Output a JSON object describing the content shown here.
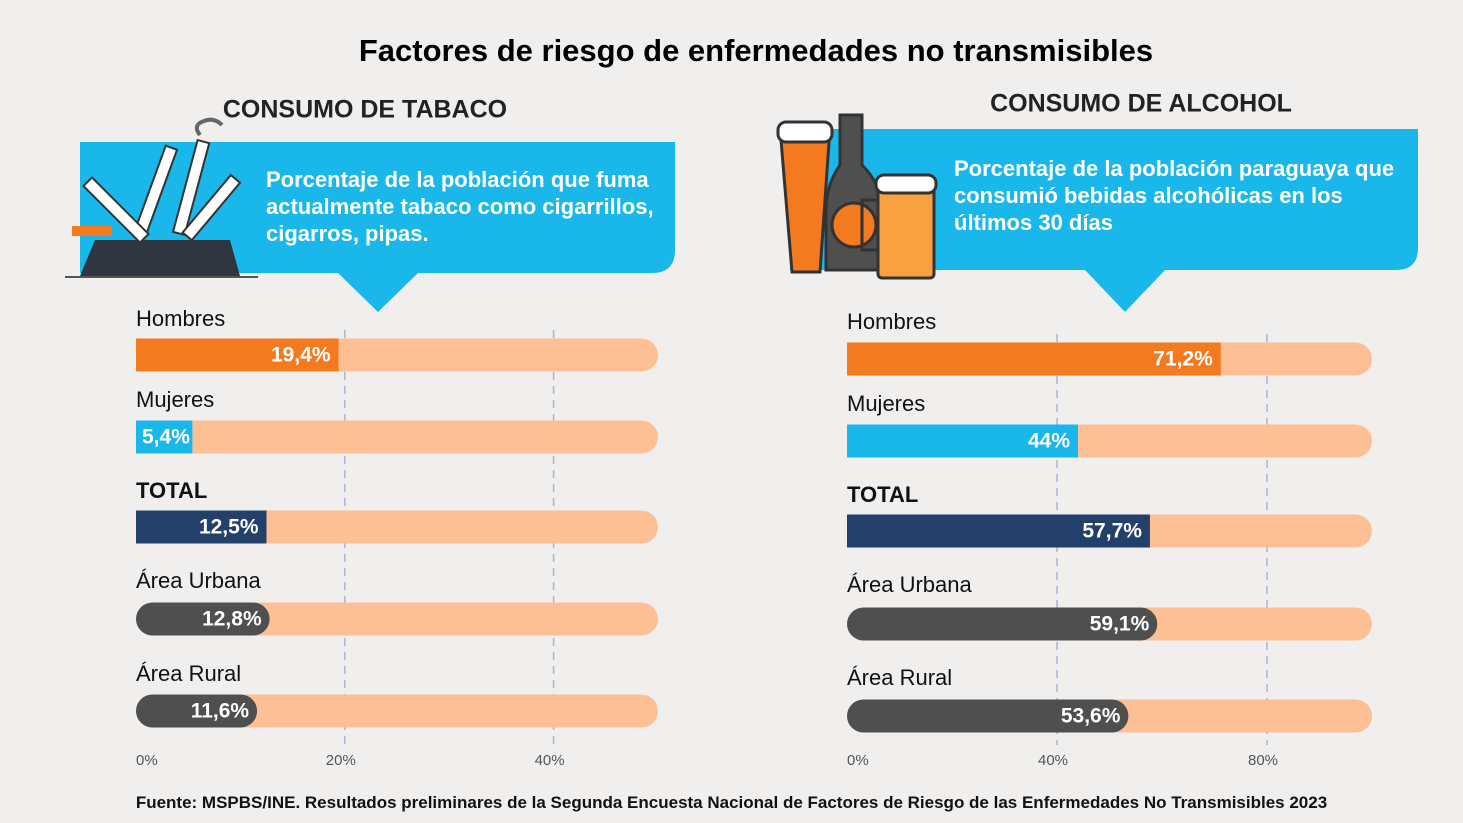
{
  "title": "Factores de riesgo de enfermedades no transmisibles",
  "source": "Fuente: MSPBS/INE. Resultados preliminares de la Segunda Encuesta Nacional de Factores de Riesgo de las Enfermedades No Transmisibles 2023",
  "chart_data": [
    {
      "type": "bar",
      "orientation": "horizontal",
      "title": "CONSUMO DE TABACO",
      "subtitle": "Porcentaje de la población que fuma actualmente tabaco como cigarrillos, cigarros, pipas.",
      "categories": [
        "Hombres",
        "Mujeres",
        "TOTAL",
        "Área Urbana",
        "Área Rural"
      ],
      "values": [
        19.4,
        5.4,
        12.5,
        12.8,
        11.6
      ],
      "value_labels": [
        "19,4%",
        "5,4%",
        "12,5%",
        "12,8%",
        "11,6%"
      ],
      "colors": [
        "#f47a20",
        "#1ab7ea",
        "#22406a",
        "#4f4f4f",
        "#4f4f4f"
      ],
      "track_color": "#fdbf94",
      "xlim": [
        0,
        50
      ],
      "xticks": [
        {
          "value": 0,
          "label": "0%"
        },
        {
          "value": 20,
          "label": "20%"
        },
        {
          "value": 40,
          "label": "40%"
        }
      ],
      "grid": true
    },
    {
      "type": "bar",
      "orientation": "horizontal",
      "title": "CONSUMO DE ALCOHOL",
      "subtitle": "Porcentaje de la población paraguaya que consumió bebidas alcohólicas en los últimos 30 días",
      "categories": [
        "Hombres",
        "Mujeres",
        "TOTAL",
        "Área Urbana",
        "Área Rural"
      ],
      "values": [
        71.2,
        44,
        57.7,
        59.1,
        53.6
      ],
      "value_labels": [
        "71,2%",
        "44%",
        "57,7%",
        "59,1%",
        "53,6%"
      ],
      "colors": [
        "#f47a20",
        "#1ab7ea",
        "#22406a",
        "#4f4f4f",
        "#4f4f4f"
      ],
      "track_color": "#fdbf94",
      "xlim": [
        0,
        100
      ],
      "xticks": [
        {
          "value": 0,
          "label": "0%"
        },
        {
          "value": 40,
          "label": "40%"
        },
        {
          "value": 80,
          "label": "80%"
        }
      ],
      "grid": true
    }
  ]
}
